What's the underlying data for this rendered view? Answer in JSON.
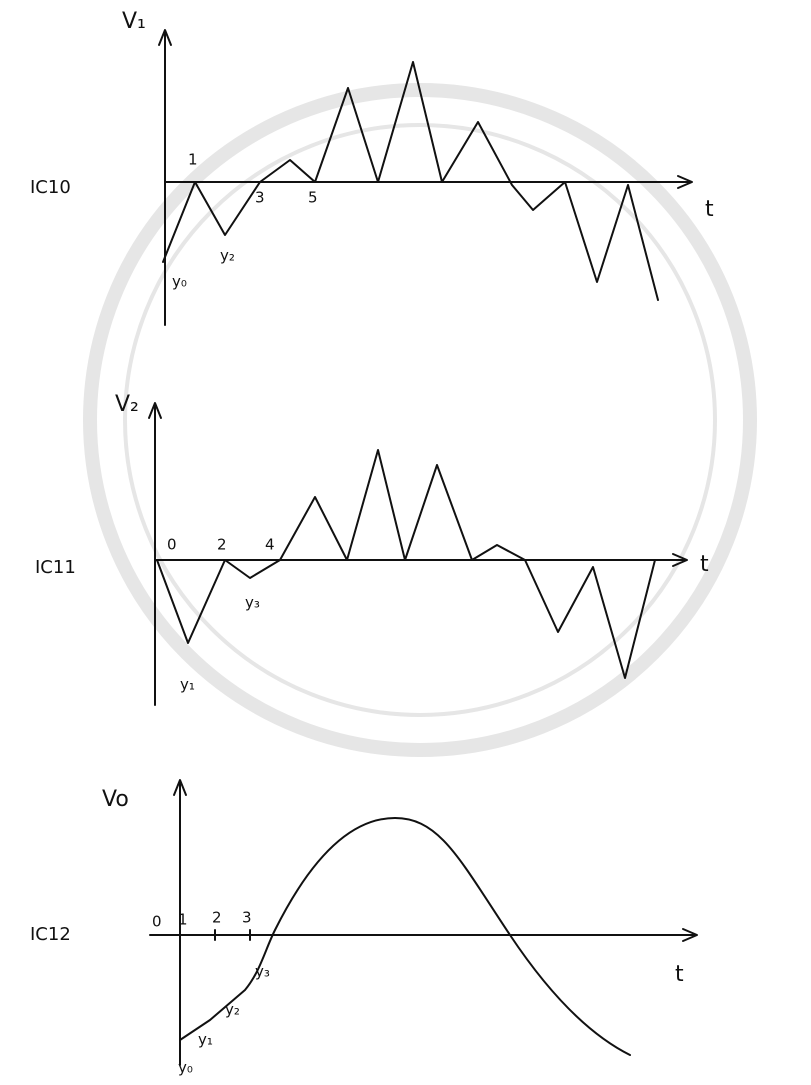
{
  "panels": [
    {
      "chip": "IC10",
      "axis_label": "V₁",
      "time_label": "t",
      "point_labels": [
        "1",
        "3",
        "5",
        "y₀",
        "y₂"
      ]
    },
    {
      "chip": "IC11",
      "axis_label": "V₂",
      "time_label": "t",
      "point_labels": [
        "0",
        "2",
        "4",
        "y₁",
        "y₃"
      ]
    },
    {
      "chip": "IC12",
      "axis_label": "Vo",
      "time_label": "t",
      "point_labels": [
        "0",
        "1",
        "2",
        "3",
        "y₀",
        "y₁",
        "y₂",
        "y₃"
      ]
    }
  ]
}
